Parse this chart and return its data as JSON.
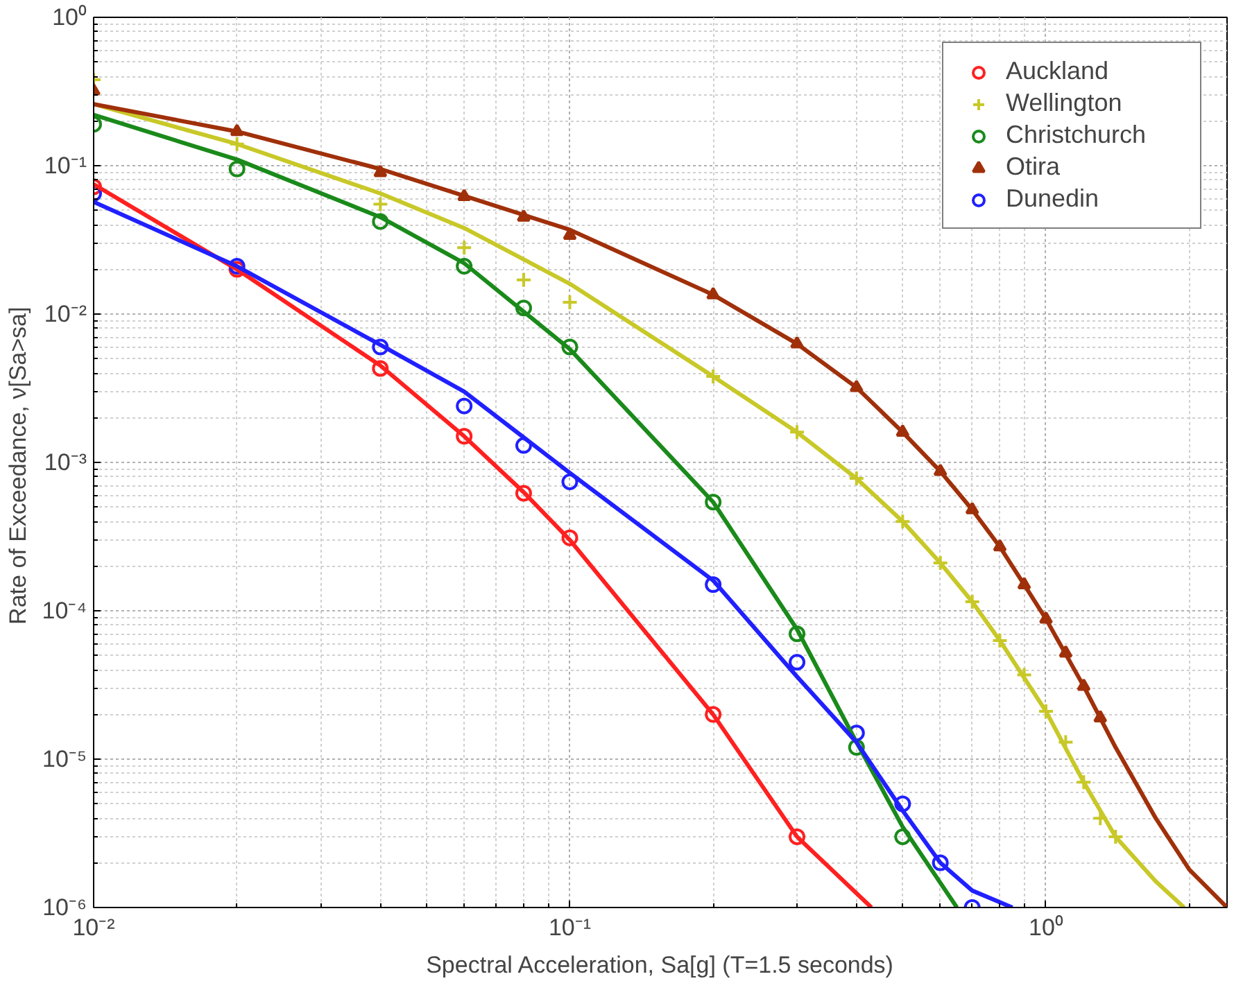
{
  "chart_data": {
    "type": "scatter",
    "log": "xy",
    "grid": true,
    "legend": "top right",
    "xlabel": "Spectral Acceleration, Sa[g] (T=1.5 seconds)",
    "ylabel": "Rate of Exceedance,  ν[Sa>sa]",
    "xlim": [
      0.01,
      2.4
    ],
    "ylim": [
      1e-06,
      1
    ],
    "xticks": [
      {
        "value": 0.01,
        "label": "10⁻²"
      },
      {
        "value": 0.1,
        "label": "10⁻¹"
      },
      {
        "value": 1,
        "label": "10⁰"
      }
    ],
    "yticks": [
      {
        "value": 1e-06,
        "label": "10⁻⁶"
      },
      {
        "value": 1e-05,
        "label": "10⁻⁵"
      },
      {
        "value": 0.0001,
        "label": "10⁻⁴"
      },
      {
        "value": 0.001,
        "label": "10⁻³"
      },
      {
        "value": 0.01,
        "label": "10⁻²"
      },
      {
        "value": 0.1,
        "label": "10⁻¹"
      },
      {
        "value": 1,
        "label": "10⁰"
      }
    ],
    "series": [
      {
        "name": "Auckland",
        "marker": "circle",
        "color": "#ff2020",
        "x": [
          0.01,
          0.02,
          0.04,
          0.06,
          0.08,
          0.1,
          0.2,
          0.3
        ],
        "values": [
          0.072,
          0.02,
          0.0043,
          0.0015,
          0.00062,
          0.00031,
          2e-05,
          3e-06
        ]
      },
      {
        "name": "Wellington",
        "marker": "cross",
        "color": "#c8c828",
        "x": [
          0.01,
          0.02,
          0.04,
          0.06,
          0.08,
          0.1,
          0.2,
          0.3,
          0.4,
          0.5,
          0.6,
          0.7,
          0.8,
          0.9,
          1.0,
          1.1,
          1.2,
          1.3,
          1.4
        ],
        "values": [
          0.38,
          0.14,
          0.055,
          0.028,
          0.017,
          0.012,
          0.0038,
          0.0016,
          0.00078,
          0.0004,
          0.00021,
          0.000115,
          6.3e-05,
          3.7e-05,
          2.1e-05,
          1.3e-05,
          7e-06,
          4e-06,
          3e-06
        ]
      },
      {
        "name": "Christchurch",
        "marker": "circle",
        "color": "#1a8a1a",
        "x": [
          0.01,
          0.02,
          0.04,
          0.06,
          0.08,
          0.1,
          0.2,
          0.3,
          0.4,
          0.5
        ],
        "values": [
          0.19,
          0.095,
          0.042,
          0.021,
          0.011,
          0.006,
          0.00054,
          7e-05,
          1.2e-05,
          3e-06
        ]
      },
      {
        "name": "Otira",
        "marker": "triangle",
        "color": "#a0300a",
        "x": [
          0.01,
          0.02,
          0.04,
          0.06,
          0.08,
          0.1,
          0.2,
          0.3,
          0.4,
          0.5,
          0.6,
          0.7,
          0.8,
          0.9,
          1.0,
          1.1,
          1.2,
          1.3
        ],
        "values": [
          0.32,
          0.17,
          0.09,
          0.062,
          0.045,
          0.034,
          0.0135,
          0.0063,
          0.0032,
          0.0016,
          0.00087,
          0.00048,
          0.00027,
          0.00015,
          8.8e-05,
          5.2e-05,
          3.1e-05,
          1.9e-05
        ]
      },
      {
        "name": "Dunedin",
        "marker": "circle",
        "color": "#2020ff",
        "x": [
          0.01,
          0.02,
          0.04,
          0.06,
          0.08,
          0.1,
          0.2,
          0.3,
          0.4,
          0.5,
          0.6,
          0.7
        ],
        "values": [
          0.065,
          0.021,
          0.006,
          0.0024,
          0.0013,
          0.00074,
          0.00015,
          4.5e-05,
          1.5e-05,
          5e-06,
          2e-06,
          1e-06
        ]
      },
      {
        "type": "line",
        "color": "#ff2020",
        "x": [
          0.01,
          0.02,
          0.04,
          0.06,
          0.08,
          0.1,
          0.2,
          0.3,
          0.43
        ],
        "values": [
          0.075,
          0.02,
          0.0045,
          0.0015,
          0.00063,
          0.0003,
          2e-05,
          3e-06,
          1e-06
        ]
      },
      {
        "type": "line",
        "color": "#c8c828",
        "x": [
          0.01,
          0.02,
          0.04,
          0.06,
          0.1,
          0.2,
          0.3,
          0.4,
          0.5,
          0.6,
          0.7,
          0.8,
          1.0,
          1.2,
          1.4,
          1.7,
          1.95
        ],
        "values": [
          0.26,
          0.14,
          0.065,
          0.038,
          0.016,
          0.0038,
          0.0016,
          0.00078,
          0.0004,
          0.00021,
          0.000115,
          6.3e-05,
          2.1e-05,
          7e-06,
          3e-06,
          1.5e-06,
          1e-06
        ]
      },
      {
        "type": "line",
        "color": "#1a8a1a",
        "x": [
          0.01,
          0.02,
          0.04,
          0.06,
          0.1,
          0.2,
          0.3,
          0.4,
          0.5,
          0.65
        ],
        "values": [
          0.22,
          0.11,
          0.045,
          0.022,
          0.0058,
          0.00054,
          7.5e-05,
          1.3e-05,
          3.5e-06,
          1e-06
        ]
      },
      {
        "type": "line",
        "color": "#a0300a",
        "x": [
          0.01,
          0.02,
          0.04,
          0.1,
          0.2,
          0.3,
          0.4,
          0.5,
          0.6,
          0.7,
          0.8,
          0.9,
          1.0,
          1.2,
          1.4,
          1.7,
          2.0,
          2.4
        ],
        "values": [
          0.26,
          0.17,
          0.095,
          0.037,
          0.0135,
          0.0063,
          0.0032,
          0.0016,
          0.00087,
          0.00048,
          0.00027,
          0.00015,
          8.8e-05,
          3.1e-05,
          1.2e-05,
          4e-06,
          1.8e-06,
          1e-06
        ]
      },
      {
        "type": "line",
        "color": "#2020ff",
        "x": [
          0.01,
          0.02,
          0.04,
          0.06,
          0.1,
          0.2,
          0.3,
          0.4,
          0.5,
          0.6,
          0.7,
          0.85
        ],
        "values": [
          0.057,
          0.021,
          0.0062,
          0.003,
          0.00085,
          0.00016,
          3.6e-05,
          1.3e-05,
          4.5e-06,
          2e-06,
          1.3e-06,
          1e-06
        ]
      }
    ]
  }
}
